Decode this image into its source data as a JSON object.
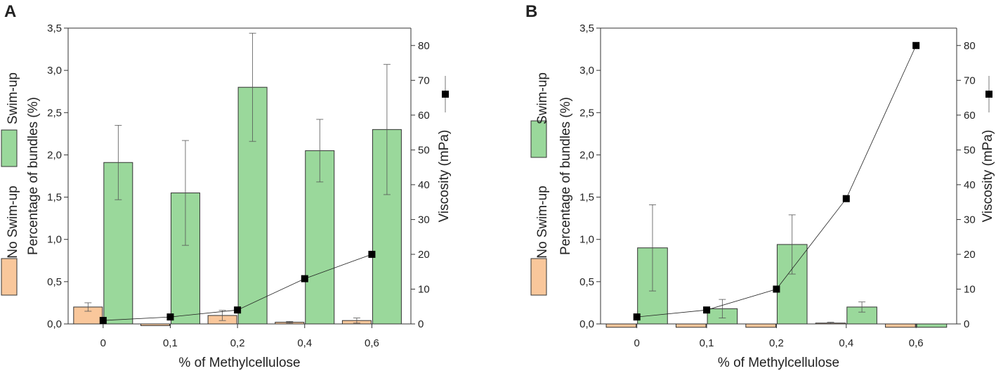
{
  "chart_data": [
    {
      "panel_label": "A",
      "type": "bar",
      "categories": [
        "0",
        "0,1",
        "0,2",
        "0,4",
        "0,6"
      ],
      "series": [
        {
          "name": "No Swim-up",
          "color": "#f9c79b",
          "values": [
            0.2,
            -0.02,
            0.1,
            0.02,
            0.04
          ],
          "errors": [
            0.05,
            0,
            0.06,
            0.01,
            0.03
          ]
        },
        {
          "name": "Swim-up",
          "color": "#9ad89b",
          "values": [
            1.91,
            1.55,
            2.8,
            2.05,
            2.3
          ],
          "errors": [
            0.44,
            0.62,
            0.64,
            0.37,
            0.77
          ]
        }
      ],
      "line_series": {
        "name": "Viscosity",
        "values": [
          1,
          2,
          4,
          13,
          20
        ],
        "legend_error": 5
      },
      "ylim": [
        0,
        3.5
      ],
      "y_ticks": [
        "0,0",
        "0,5",
        "1,0",
        "1,5",
        "2,0",
        "2,5",
        "3,0",
        "3,5"
      ],
      "y2lim": [
        0,
        85
      ],
      "y2_ticks": [
        "0",
        "10",
        "20",
        "30",
        "40",
        "50",
        "60",
        "70",
        "80"
      ],
      "xlabel": "% of Methylcellulose",
      "ylabel": "Percentage of bundles (%)",
      "y2label": "Viscosity (mPa)"
    },
    {
      "panel_label": "B",
      "type": "bar",
      "categories": [
        "0",
        "0,1",
        "0,2",
        "0,4",
        "0,6"
      ],
      "series": [
        {
          "name": "No Swim-up",
          "color": "#f9c79b",
          "values": [
            -0.04,
            -0.04,
            -0.04,
            0.01,
            -0.04
          ],
          "errors": [
            0,
            0,
            0,
            0.01,
            0
          ]
        },
        {
          "name": "Swim-up",
          "color": "#9ad89b",
          "values": [
            0.9,
            0.18,
            0.94,
            0.2,
            -0.04
          ],
          "errors": [
            0.51,
            0.11,
            0.35,
            0.06,
            0
          ]
        }
      ],
      "line_series": {
        "name": "Viscosity",
        "values": [
          2,
          4,
          10,
          36,
          80
        ],
        "legend_error": 5
      },
      "ylim": [
        0,
        3.5
      ],
      "y_ticks": [
        "0,0",
        "0,5",
        "1,0",
        "1,5",
        "2,0",
        "2,5",
        "3,0",
        "3,5"
      ],
      "y2lim": [
        0,
        85
      ],
      "y2_ticks": [
        "0",
        "10",
        "20",
        "30",
        "40",
        "50",
        "60",
        "70",
        "80"
      ],
      "xlabel": "% of Methylcellulose",
      "ylabel": "Percentage of bundles (%)",
      "y2label": "Viscosity (mPa)"
    }
  ]
}
